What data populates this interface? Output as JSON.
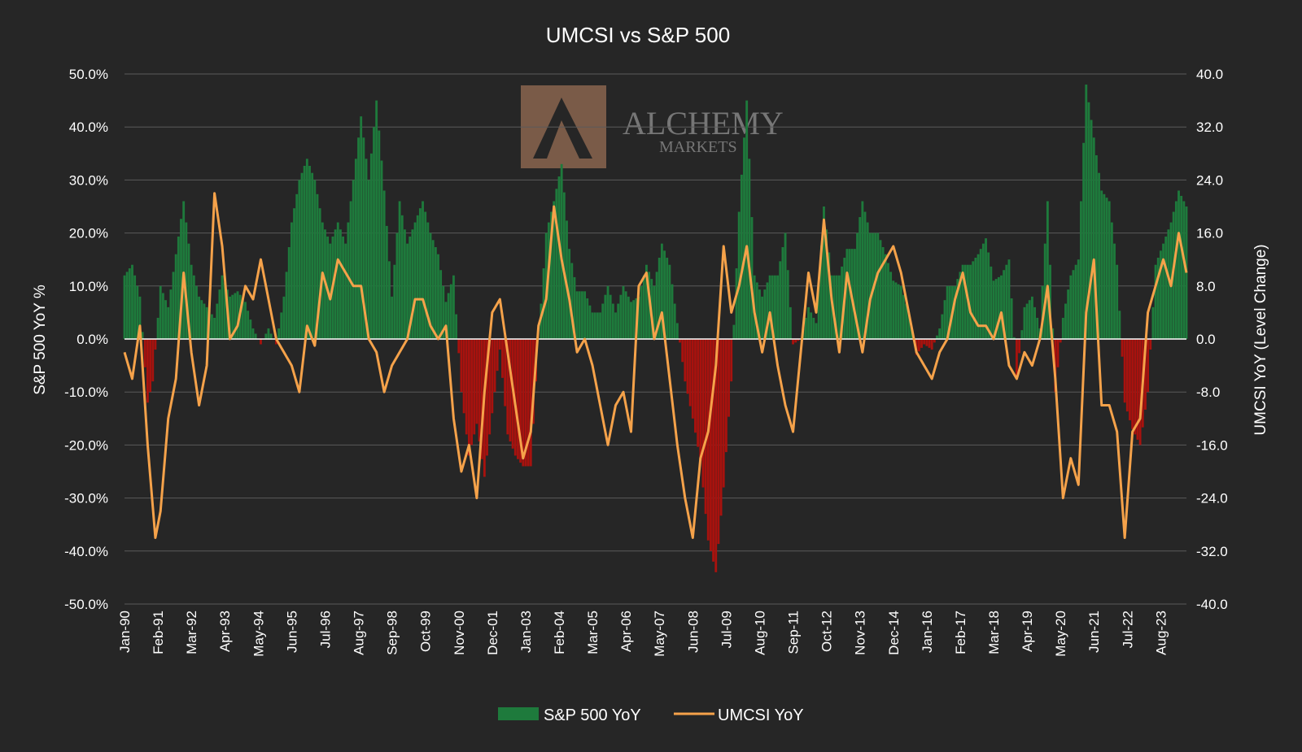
{
  "chart_data": {
    "type": "bar",
    "title": "UMCSI vs S&P 500",
    "ylabel": "S&P 500 YoY %",
    "y2label": "UMCSI YoY (Level Change)",
    "ylim": [
      -50,
      50
    ],
    "y2lim": [
      -40,
      40
    ],
    "y_ticks": [
      "50.0%",
      "40.0%",
      "30.0%",
      "20.0%",
      "10.0%",
      "0.0%",
      "-10.0%",
      "-20.0%",
      "-30.0%",
      "-40.0%",
      "-50.0%"
    ],
    "y2_ticks": [
      "40.0",
      "32.0",
      "24.0",
      "16.0",
      "8.0",
      "0.0",
      "-8.0",
      "-16.0",
      "-24.0",
      "-32.0",
      "-40.0"
    ],
    "x_ticks": [
      "Jan-90",
      "Feb-91",
      "Mar-92",
      "Apr-93",
      "May-94",
      "Jun-95",
      "Jul-96",
      "Aug-97",
      "Sep-98",
      "Oct-99",
      "Nov-00",
      "Dec-01",
      "Jan-03",
      "Feb-04",
      "Mar-05",
      "Apr-06",
      "May-07",
      "Jun-08",
      "Jul-09",
      "Aug-10",
      "Sep-11",
      "Oct-12",
      "Nov-13",
      "Dec-14",
      "Jan-16",
      "Feb-17",
      "Mar-18",
      "Apr-19",
      "May-20",
      "Jun-21",
      "Jul-22",
      "Aug-23"
    ],
    "x_range": [
      "Jan-90",
      "Jun-24"
    ],
    "positive_color": "#1e7a3c",
    "negative_color": "#a8120e",
    "line_color": "#f5a24a",
    "grid": true,
    "legend_position": "bottom",
    "series": [
      {
        "name": "S&P 500 YoY",
        "type": "bar",
        "axis": "left",
        "points": [
          [
            "1990-01",
            12
          ],
          [
            "1990-04",
            14
          ],
          [
            "1990-07",
            8
          ],
          [
            "1990-10",
            -12
          ],
          [
            "1990-12",
            -8
          ],
          [
            "1991-03",
            10
          ],
          [
            "1991-06",
            6
          ],
          [
            "1991-09",
            16
          ],
          [
            "1991-12",
            26
          ],
          [
            "1992-03",
            14
          ],
          [
            "1992-06",
            8
          ],
          [
            "1992-09",
            6
          ],
          [
            "1992-12",
            4
          ],
          [
            "1993-03",
            12
          ],
          [
            "1993-06",
            8
          ],
          [
            "1993-09",
            9
          ],
          [
            "1993-12",
            7
          ],
          [
            "1994-03",
            2
          ],
          [
            "1994-06",
            -1
          ],
          [
            "1994-09",
            2
          ],
          [
            "1994-12",
            -1
          ],
          [
            "1995-03",
            8
          ],
          [
            "1995-06",
            22
          ],
          [
            "1995-09",
            30
          ],
          [
            "1995-12",
            34
          ],
          [
            "1996-03",
            30
          ],
          [
            "1996-06",
            22
          ],
          [
            "1996-09",
            18
          ],
          [
            "1996-12",
            22
          ],
          [
            "1997-03",
            18
          ],
          [
            "1997-06",
            30
          ],
          [
            "1997-09",
            42
          ],
          [
            "1997-12",
            30
          ],
          [
            "1998-03",
            45
          ],
          [
            "1998-06",
            28
          ],
          [
            "1998-09",
            8
          ],
          [
            "1998-12",
            26
          ],
          [
            "1999-03",
            18
          ],
          [
            "1999-06",
            22
          ],
          [
            "1999-09",
            26
          ],
          [
            "1999-12",
            20
          ],
          [
            "2000-03",
            16
          ],
          [
            "2000-06",
            7
          ],
          [
            "2000-09",
            12
          ],
          [
            "2000-12",
            -10
          ],
          [
            "2001-03",
            -22
          ],
          [
            "2001-06",
            -16
          ],
          [
            "2001-09",
            -26
          ],
          [
            "2001-12",
            -14
          ],
          [
            "2002-03",
            -2
          ],
          [
            "2002-06",
            -18
          ],
          [
            "2002-09",
            -22
          ],
          [
            "2002-12",
            -24
          ],
          [
            "2003-03",
            -24
          ],
          [
            "2003-06",
            0
          ],
          [
            "2003-09",
            20
          ],
          [
            "2003-12",
            26
          ],
          [
            "2004-03",
            33
          ],
          [
            "2004-06",
            17
          ],
          [
            "2004-09",
            9
          ],
          [
            "2004-12",
            9
          ],
          [
            "2005-03",
            5
          ],
          [
            "2005-06",
            5
          ],
          [
            "2005-09",
            10
          ],
          [
            "2005-12",
            5
          ],
          [
            "2006-03",
            10
          ],
          [
            "2006-06",
            7
          ],
          [
            "2006-09",
            8
          ],
          [
            "2006-12",
            14
          ],
          [
            "2007-03",
            10
          ],
          [
            "2007-06",
            18
          ],
          [
            "2007-09",
            14
          ],
          [
            "2007-12",
            3
          ],
          [
            "2008-03",
            -8
          ],
          [
            "2008-06",
            -15
          ],
          [
            "2008-09",
            -23
          ],
          [
            "2008-12",
            -38
          ],
          [
            "2009-03",
            -44
          ],
          [
            "2009-06",
            -28
          ],
          [
            "2009-09",
            -8
          ],
          [
            "2009-12",
            24
          ],
          [
            "2010-03",
            45
          ],
          [
            "2010-06",
            12
          ],
          [
            "2010-09",
            8
          ],
          [
            "2010-12",
            12
          ],
          [
            "2011-03",
            12
          ],
          [
            "2011-06",
            20
          ],
          [
            "2011-09",
            -1
          ],
          [
            "2011-12",
            0
          ],
          [
            "2012-03",
            6
          ],
          [
            "2012-06",
            3
          ],
          [
            "2012-09",
            25
          ],
          [
            "2012-12",
            12
          ],
          [
            "2013-03",
            12
          ],
          [
            "2013-06",
            17
          ],
          [
            "2013-09",
            17
          ],
          [
            "2013-12",
            26
          ],
          [
            "2014-03",
            20
          ],
          [
            "2014-06",
            20
          ],
          [
            "2014-09",
            16
          ],
          [
            "2014-12",
            11
          ],
          [
            "2015-03",
            10
          ],
          [
            "2015-06",
            5
          ],
          [
            "2015-09",
            -3
          ],
          [
            "2015-12",
            -1
          ],
          [
            "2016-03",
            -2
          ],
          [
            "2016-06",
            2
          ],
          [
            "2016-09",
            10
          ],
          [
            "2016-12",
            10
          ],
          [
            "2017-03",
            14
          ],
          [
            "2017-06",
            14
          ],
          [
            "2017-09",
            16
          ],
          [
            "2017-12",
            19
          ],
          [
            "2018-03",
            11
          ],
          [
            "2018-06",
            12
          ],
          [
            "2018-09",
            15
          ],
          [
            "2018-12",
            -7
          ],
          [
            "2019-03",
            6
          ],
          [
            "2019-06",
            8
          ],
          [
            "2019-09",
            2
          ],
          [
            "2019-12",
            26
          ],
          [
            "2020-03",
            -10
          ],
          [
            "2020-06",
            4
          ],
          [
            "2020-09",
            12
          ],
          [
            "2020-12",
            15
          ],
          [
            "2021-03",
            48
          ],
          [
            "2021-06",
            38
          ],
          [
            "2021-09",
            28
          ],
          [
            "2021-12",
            26
          ],
          [
            "2022-03",
            14
          ],
          [
            "2022-06",
            -12
          ],
          [
            "2022-09",
            -17
          ],
          [
            "2022-12",
            -20
          ],
          [
            "2023-03",
            -10
          ],
          [
            "2023-06",
            14
          ],
          [
            "2023-09",
            18
          ],
          [
            "2023-12",
            22
          ],
          [
            "2024-03",
            28
          ],
          [
            "2024-06",
            25
          ]
        ]
      },
      {
        "name": "UMCSI YoY",
        "type": "line",
        "axis": "right",
        "points": [
          [
            "1990-01",
            -2
          ],
          [
            "1990-04",
            -6
          ],
          [
            "1990-07",
            2
          ],
          [
            "1990-10",
            -16
          ],
          [
            "1991-01",
            -30
          ],
          [
            "1991-03",
            -26
          ],
          [
            "1991-06",
            -12
          ],
          [
            "1991-09",
            -6
          ],
          [
            "1991-12",
            10
          ],
          [
            "1992-03",
            -2
          ],
          [
            "1992-06",
            -10
          ],
          [
            "1992-09",
            -4
          ],
          [
            "1992-12",
            22
          ],
          [
            "1993-03",
            14
          ],
          [
            "1993-06",
            0
          ],
          [
            "1993-09",
            2
          ],
          [
            "1993-12",
            8
          ],
          [
            "1994-03",
            6
          ],
          [
            "1994-06",
            12
          ],
          [
            "1994-09",
            6
          ],
          [
            "1994-12",
            0
          ],
          [
            "1995-03",
            -2
          ],
          [
            "1995-06",
            -4
          ],
          [
            "1995-09",
            -8
          ],
          [
            "1995-12",
            2
          ],
          [
            "1996-03",
            -1
          ],
          [
            "1996-06",
            10
          ],
          [
            "1996-09",
            6
          ],
          [
            "1996-12",
            12
          ],
          [
            "1997-03",
            10
          ],
          [
            "1997-06",
            8
          ],
          [
            "1997-09",
            8
          ],
          [
            "1997-12",
            0
          ],
          [
            "1998-03",
            -2
          ],
          [
            "1998-06",
            -8
          ],
          [
            "1998-09",
            -4
          ],
          [
            "1998-12",
            -2
          ],
          [
            "1999-03",
            0
          ],
          [
            "1999-06",
            6
          ],
          [
            "1999-09",
            6
          ],
          [
            "1999-12",
            2
          ],
          [
            "2000-03",
            0
          ],
          [
            "2000-06",
            2
          ],
          [
            "2000-09",
            -12
          ],
          [
            "2000-12",
            -20
          ],
          [
            "2001-03",
            -16
          ],
          [
            "2001-06",
            -24
          ],
          [
            "2001-09",
            -8
          ],
          [
            "2001-12",
            4
          ],
          [
            "2002-03",
            6
          ],
          [
            "2002-06",
            -2
          ],
          [
            "2002-09",
            -10
          ],
          [
            "2002-12",
            -18
          ],
          [
            "2003-03",
            -14
          ],
          [
            "2003-06",
            2
          ],
          [
            "2003-09",
            6
          ],
          [
            "2003-12",
            20
          ],
          [
            "2004-03",
            12
          ],
          [
            "2004-06",
            6
          ],
          [
            "2004-09",
            -2
          ],
          [
            "2004-12",
            0
          ],
          [
            "2005-03",
            -4
          ],
          [
            "2005-06",
            -10
          ],
          [
            "2005-09",
            -16
          ],
          [
            "2005-12",
            -10
          ],
          [
            "2006-03",
            -8
          ],
          [
            "2006-06",
            -14
          ],
          [
            "2006-09",
            8
          ],
          [
            "2006-12",
            10
          ],
          [
            "2007-03",
            0
          ],
          [
            "2007-06",
            4
          ],
          [
            "2007-09",
            -6
          ],
          [
            "2007-12",
            -16
          ],
          [
            "2008-03",
            -24
          ],
          [
            "2008-06",
            -30
          ],
          [
            "2008-09",
            -18
          ],
          [
            "2008-12",
            -14
          ],
          [
            "2009-03",
            -4
          ],
          [
            "2009-06",
            14
          ],
          [
            "2009-09",
            4
          ],
          [
            "2009-12",
            8
          ],
          [
            "2010-03",
            14
          ],
          [
            "2010-06",
            4
          ],
          [
            "2010-09",
            -2
          ],
          [
            "2010-12",
            4
          ],
          [
            "2011-03",
            -4
          ],
          [
            "2011-06",
            -10
          ],
          [
            "2011-09",
            -14
          ],
          [
            "2011-12",
            -2
          ],
          [
            "2012-03",
            10
          ],
          [
            "2012-06",
            4
          ],
          [
            "2012-09",
            18
          ],
          [
            "2012-12",
            6
          ],
          [
            "2013-03",
            -2
          ],
          [
            "2013-06",
            10
          ],
          [
            "2013-09",
            4
          ],
          [
            "2013-12",
            -2
          ],
          [
            "2014-03",
            6
          ],
          [
            "2014-06",
            10
          ],
          [
            "2014-09",
            12
          ],
          [
            "2014-12",
            14
          ],
          [
            "2015-03",
            10
          ],
          [
            "2015-06",
            4
          ],
          [
            "2015-09",
            -2
          ],
          [
            "2015-12",
            -4
          ],
          [
            "2016-03",
            -6
          ],
          [
            "2016-06",
            -2
          ],
          [
            "2016-09",
            0
          ],
          [
            "2016-12",
            6
          ],
          [
            "2017-03",
            10
          ],
          [
            "2017-06",
            4
          ],
          [
            "2017-09",
            2
          ],
          [
            "2017-12",
            2
          ],
          [
            "2018-03",
            0
          ],
          [
            "2018-06",
            4
          ],
          [
            "2018-09",
            -4
          ],
          [
            "2018-12",
            -6
          ],
          [
            "2019-03",
            -2
          ],
          [
            "2019-06",
            -4
          ],
          [
            "2019-09",
            0
          ],
          [
            "2019-12",
            8
          ],
          [
            "2020-03",
            -6
          ],
          [
            "2020-06",
            -24
          ],
          [
            "2020-09",
            -18
          ],
          [
            "2020-12",
            -22
          ],
          [
            "2021-03",
            4
          ],
          [
            "2021-06",
            12
          ],
          [
            "2021-09",
            -10
          ],
          [
            "2021-12",
            -10
          ],
          [
            "2022-03",
            -14
          ],
          [
            "2022-06",
            -30
          ],
          [
            "2022-09",
            -14
          ],
          [
            "2022-12",
            -12
          ],
          [
            "2023-03",
            4
          ],
          [
            "2023-06",
            8
          ],
          [
            "2023-09",
            12
          ],
          [
            "2023-12",
            8
          ],
          [
            "2024-03",
            16
          ],
          [
            "2024-06",
            10
          ]
        ]
      }
    ]
  },
  "watermark": {
    "line1": "ALCHEMY",
    "line2": "MARKETS"
  }
}
